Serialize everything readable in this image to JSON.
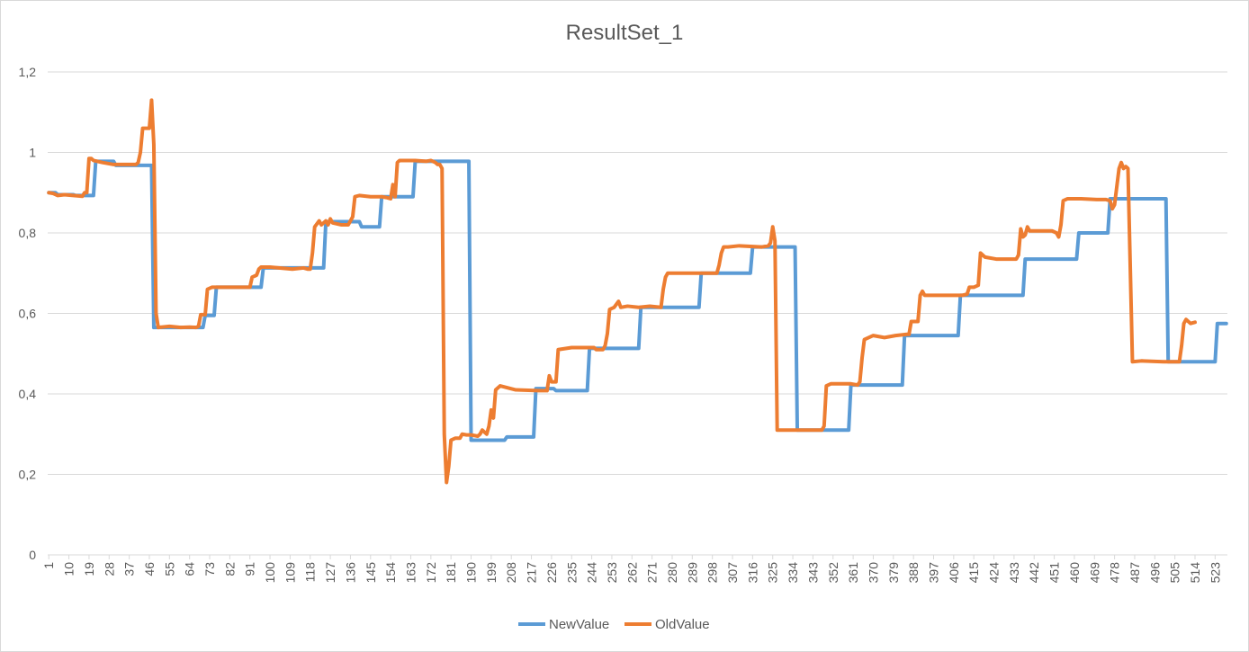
{
  "chart_data": {
    "type": "line",
    "title": "ResultSet_1",
    "xlabel": "",
    "ylabel": "",
    "x_start": 1,
    "x_end": 528,
    "xtick_labels": [
      "1",
      "10",
      "19",
      "28",
      "37",
      "46",
      "55",
      "64",
      "73",
      "82",
      "91",
      "100",
      "109",
      "118",
      "127",
      "136",
      "145",
      "154",
      "163",
      "172",
      "181",
      "190",
      "199",
      "208",
      "217",
      "226",
      "235",
      "244",
      "253",
      "262",
      "271",
      "280",
      "289",
      "298",
      "307",
      "316",
      "325",
      "334",
      "343",
      "352",
      "361",
      "370",
      "379",
      "388",
      "397",
      "406",
      "415",
      "424",
      "433",
      "442",
      "451",
      "460",
      "469",
      "478",
      "487",
      "496",
      "505",
      "514",
      "523"
    ],
    "ylim": [
      0,
      1.2
    ],
    "ytick_labels": [
      "0",
      "0,2",
      "0,4",
      "0,6",
      "0,8",
      "1",
      "1,2"
    ],
    "grid": true,
    "legend_position": "bottom",
    "series": [
      {
        "name": "NewValue",
        "color": "#5b9bd5",
        "points": [
          [
            1,
            0.9
          ],
          [
            4,
            0.9
          ],
          [
            5,
            0.895
          ],
          [
            12,
            0.895
          ],
          [
            13,
            0.893
          ],
          [
            21,
            0.893
          ],
          [
            22,
            0.978
          ],
          [
            30,
            0.978
          ],
          [
            31,
            0.968
          ],
          [
            47,
            0.968
          ],
          [
            48,
            0.565
          ],
          [
            70,
            0.565
          ],
          [
            71,
            0.595
          ],
          [
            75,
            0.595
          ],
          [
            76,
            0.665
          ],
          [
            96,
            0.665
          ],
          [
            97,
            0.713
          ],
          [
            124,
            0.713
          ],
          [
            125,
            0.828
          ],
          [
            140,
            0.828
          ],
          [
            141,
            0.815
          ],
          [
            149,
            0.815
          ],
          [
            150,
            0.89
          ],
          [
            164,
            0.89
          ],
          [
            165,
            0.978
          ],
          [
            189,
            0.978
          ],
          [
            190,
            0.285
          ],
          [
            205,
            0.285
          ],
          [
            206,
            0.293
          ],
          [
            218,
            0.293
          ],
          [
            219,
            0.413
          ],
          [
            227,
            0.413
          ],
          [
            228,
            0.408
          ],
          [
            242,
            0.408
          ],
          [
            243,
            0.513
          ],
          [
            265,
            0.513
          ],
          [
            266,
            0.615
          ],
          [
            292,
            0.615
          ],
          [
            293,
            0.7
          ],
          [
            315,
            0.7
          ],
          [
            316,
            0.765
          ],
          [
            335,
            0.765
          ],
          [
            336,
            0.31
          ],
          [
            359,
            0.31
          ],
          [
            360,
            0.422
          ],
          [
            383,
            0.422
          ],
          [
            384,
            0.545
          ],
          [
            408,
            0.545
          ],
          [
            409,
            0.645
          ],
          [
            437,
            0.645
          ],
          [
            438,
            0.735
          ],
          [
            461,
            0.735
          ],
          [
            462,
            0.8
          ],
          [
            475,
            0.8
          ],
          [
            476,
            0.885
          ],
          [
            501,
            0.885
          ],
          [
            502,
            0.48
          ],
          [
            523,
            0.48
          ],
          [
            524,
            0.575
          ],
          [
            528,
            0.575
          ]
        ]
      },
      {
        "name": "OldValue",
        "color": "#ed7d31",
        "points": [
          [
            1,
            0.9
          ],
          [
            3,
            0.898
          ],
          [
            5,
            0.893
          ],
          [
            8,
            0.895
          ],
          [
            12,
            0.893
          ],
          [
            16,
            0.891
          ],
          [
            17,
            0.9
          ],
          [
            18,
            0.9
          ],
          [
            19,
            0.985
          ],
          [
            20,
            0.985
          ],
          [
            21,
            0.98
          ],
          [
            25,
            0.975
          ],
          [
            30,
            0.97
          ],
          [
            38,
            0.97
          ],
          [
            40,
            0.97
          ],
          [
            41,
            0.975
          ],
          [
            42,
            1.0
          ],
          [
            43,
            1.06
          ],
          [
            45,
            1.06
          ],
          [
            46,
            1.06
          ],
          [
            47,
            1.13
          ],
          [
            48,
            1.02
          ],
          [
            49,
            0.6
          ],
          [
            50,
            0.565
          ],
          [
            55,
            0.568
          ],
          [
            60,
            0.565
          ],
          [
            64,
            0.566
          ],
          [
            67,
            0.565
          ],
          [
            68,
            0.568
          ],
          [
            69,
            0.597
          ],
          [
            71,
            0.597
          ],
          [
            72,
            0.66
          ],
          [
            74,
            0.665
          ],
          [
            80,
            0.665
          ],
          [
            90,
            0.665
          ],
          [
            91,
            0.665
          ],
          [
            92,
            0.69
          ],
          [
            94,
            0.695
          ],
          [
            95,
            0.71
          ],
          [
            96,
            0.715
          ],
          [
            100,
            0.715
          ],
          [
            110,
            0.71
          ],
          [
            115,
            0.713
          ],
          [
            117,
            0.71
          ],
          [
            118,
            0.71
          ],
          [
            119,
            0.75
          ],
          [
            120,
            0.815
          ],
          [
            122,
            0.83
          ],
          [
            123,
            0.82
          ],
          [
            125,
            0.83
          ],
          [
            126,
            0.82
          ],
          [
            127,
            0.835
          ],
          [
            128,
            0.825
          ],
          [
            132,
            0.82
          ],
          [
            135,
            0.82
          ],
          [
            136,
            0.83
          ],
          [
            137,
            0.84
          ],
          [
            138,
            0.89
          ],
          [
            140,
            0.893
          ],
          [
            145,
            0.89
          ],
          [
            150,
            0.89
          ],
          [
            152,
            0.888
          ],
          [
            154,
            0.885
          ],
          [
            155,
            0.92
          ],
          [
            156,
            0.89
          ],
          [
            157,
            0.975
          ],
          [
            158,
            0.98
          ],
          [
            165,
            0.98
          ],
          [
            170,
            0.978
          ],
          [
            172,
            0.98
          ],
          [
            174,
            0.975
          ],
          [
            175,
            0.97
          ],
          [
            176,
            0.97
          ],
          [
            177,
            0.96
          ],
          [
            178,
            0.3
          ],
          [
            179,
            0.18
          ],
          [
            180,
            0.22
          ],
          [
            181,
            0.285
          ],
          [
            183,
            0.29
          ],
          [
            185,
            0.29
          ],
          [
            186,
            0.3
          ],
          [
            188,
            0.298
          ],
          [
            190,
            0.298
          ],
          [
            193,
            0.295
          ],
          [
            194,
            0.3
          ],
          [
            195,
            0.31
          ],
          [
            197,
            0.3
          ],
          [
            198,
            0.32
          ],
          [
            199,
            0.36
          ],
          [
            200,
            0.34
          ],
          [
            201,
            0.41
          ],
          [
            203,
            0.42
          ],
          [
            210,
            0.41
          ],
          [
            220,
            0.408
          ],
          [
            224,
            0.408
          ],
          [
            225,
            0.445
          ],
          [
            226,
            0.43
          ],
          [
            228,
            0.43
          ],
          [
            229,
            0.51
          ],
          [
            235,
            0.515
          ],
          [
            240,
            0.515
          ],
          [
            245,
            0.515
          ],
          [
            246,
            0.51
          ],
          [
            249,
            0.51
          ],
          [
            250,
            0.52
          ],
          [
            251,
            0.55
          ],
          [
            252,
            0.61
          ],
          [
            254,
            0.615
          ],
          [
            256,
            0.63
          ],
          [
            257,
            0.615
          ],
          [
            260,
            0.618
          ],
          [
            265,
            0.615
          ],
          [
            270,
            0.618
          ],
          [
            275,
            0.615
          ],
          [
            276,
            0.66
          ],
          [
            277,
            0.69
          ],
          [
            278,
            0.7
          ],
          [
            283,
            0.7
          ],
          [
            290,
            0.7
          ],
          [
            300,
            0.7
          ],
          [
            301,
            0.72
          ],
          [
            302,
            0.75
          ],
          [
            303,
            0.765
          ],
          [
            305,
            0.765
          ],
          [
            310,
            0.768
          ],
          [
            320,
            0.765
          ],
          [
            323,
            0.768
          ],
          [
            324,
            0.775
          ],
          [
            325,
            0.815
          ],
          [
            326,
            0.78
          ],
          [
            327,
            0.31
          ],
          [
            330,
            0.31
          ],
          [
            340,
            0.31
          ],
          [
            345,
            0.31
          ],
          [
            347,
            0.31
          ],
          [
            348,
            0.32
          ],
          [
            349,
            0.42
          ],
          [
            351,
            0.425
          ],
          [
            355,
            0.425
          ],
          [
            360,
            0.425
          ],
          [
            363,
            0.422
          ],
          [
            364,
            0.43
          ],
          [
            365,
            0.49
          ],
          [
            366,
            0.535
          ],
          [
            368,
            0.54
          ],
          [
            370,
            0.545
          ],
          [
            375,
            0.54
          ],
          [
            380,
            0.545
          ],
          [
            385,
            0.548
          ],
          [
            386,
            0.548
          ],
          [
            387,
            0.58
          ],
          [
            390,
            0.58
          ],
          [
            391,
            0.645
          ],
          [
            392,
            0.655
          ],
          [
            393,
            0.645
          ],
          [
            400,
            0.645
          ],
          [
            410,
            0.645
          ],
          [
            412,
            0.648
          ],
          [
            413,
            0.665
          ],
          [
            415,
            0.665
          ],
          [
            417,
            0.67
          ],
          [
            418,
            0.75
          ],
          [
            420,
            0.74
          ],
          [
            425,
            0.735
          ],
          [
            430,
            0.735
          ],
          [
            434,
            0.735
          ],
          [
            435,
            0.745
          ],
          [
            436,
            0.81
          ],
          [
            437,
            0.79
          ],
          [
            438,
            0.795
          ],
          [
            439,
            0.815
          ],
          [
            440,
            0.805
          ],
          [
            445,
            0.805
          ],
          [
            450,
            0.805
          ],
          [
            452,
            0.8
          ],
          [
            453,
            0.79
          ],
          [
            454,
            0.82
          ],
          [
            455,
            0.88
          ],
          [
            457,
            0.885
          ],
          [
            463,
            0.885
          ],
          [
            470,
            0.883
          ],
          [
            474,
            0.883
          ],
          [
            476,
            0.88
          ],
          [
            477,
            0.86
          ],
          [
            478,
            0.87
          ],
          [
            480,
            0.96
          ],
          [
            481,
            0.975
          ],
          [
            482,
            0.96
          ],
          [
            483,
            0.965
          ],
          [
            484,
            0.96
          ],
          [
            486,
            0.48
          ],
          [
            490,
            0.482
          ],
          [
            500,
            0.48
          ],
          [
            505,
            0.48
          ],
          [
            507,
            0.48
          ],
          [
            508,
            0.52
          ],
          [
            509,
            0.575
          ],
          [
            510,
            0.585
          ],
          [
            512,
            0.575
          ],
          [
            514,
            0.578
          ]
        ]
      }
    ]
  }
}
